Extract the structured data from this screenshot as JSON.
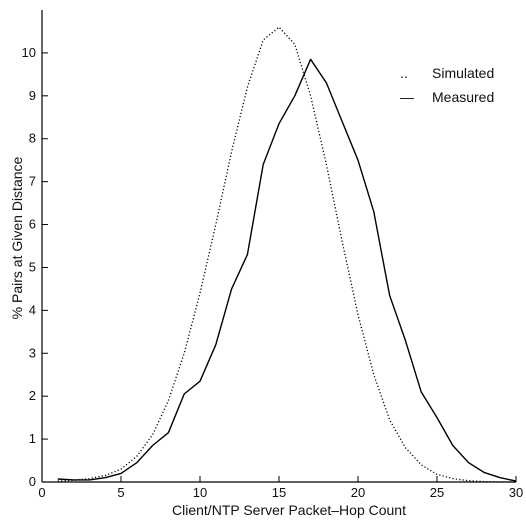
{
  "chart_data": {
    "type": "line",
    "title": "",
    "xlabel": "Client/NTP Server Packet–Hop Count",
    "ylabel": "% Pairs at Given Distance",
    "xlim": [
      0,
      30
    ],
    "ylim": [
      0,
      11
    ],
    "x_ticks": [
      0,
      5,
      10,
      15,
      20,
      25,
      30
    ],
    "y_ticks": [
      0,
      1,
      2,
      3,
      4,
      5,
      6,
      7,
      8,
      9,
      10
    ],
    "grid": false,
    "legend_position": "top-right",
    "legend_markers": {
      "Simulated": "..",
      "Measured": "—"
    },
    "series": [
      {
        "name": "Simulated",
        "style": "dotted",
        "color": "#000000",
        "x": [
          1,
          2,
          3,
          4,
          5,
          6,
          7,
          8,
          9,
          10,
          11,
          12,
          13,
          14,
          15,
          16,
          17,
          18,
          19,
          20,
          21,
          22,
          23,
          24,
          25,
          26,
          27,
          28,
          29,
          30
        ],
        "y": [
          0.02,
          0.04,
          0.08,
          0.15,
          0.3,
          0.6,
          1.1,
          1.9,
          3.0,
          4.4,
          6.0,
          7.7,
          9.2,
          10.3,
          10.6,
          10.2,
          9.0,
          7.4,
          5.6,
          3.9,
          2.5,
          1.45,
          0.8,
          0.4,
          0.18,
          0.08,
          0.03,
          0.01,
          0.0,
          0.0
        ]
      },
      {
        "name": "Measured",
        "style": "solid",
        "color": "#000000",
        "x": [
          1,
          2,
          3,
          4,
          5,
          6,
          7,
          8,
          9,
          10,
          11,
          12,
          13,
          14,
          15,
          16,
          17,
          18,
          19,
          20,
          21,
          22,
          23,
          24,
          25,
          26,
          27,
          28,
          29,
          30
        ],
        "y": [
          0.07,
          0.05,
          0.05,
          0.1,
          0.2,
          0.45,
          0.85,
          1.15,
          2.05,
          2.35,
          3.2,
          4.5,
          5.3,
          7.4,
          8.35,
          9.0,
          9.85,
          9.3,
          8.4,
          7.5,
          6.3,
          4.35,
          3.3,
          2.1,
          1.5,
          0.85,
          0.45,
          0.22,
          0.1,
          0.02
        ]
      }
    ]
  }
}
